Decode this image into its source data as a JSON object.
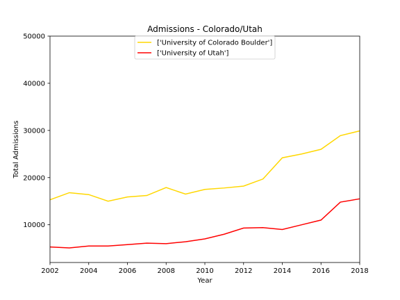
{
  "chart_data": {
    "type": "line",
    "title": "Admissions - Colorado/Utah",
    "xlabel": "Year",
    "ylabel": "Total Admissions",
    "xlim": [
      2002,
      2018
    ],
    "ylim": [
      2000,
      50000
    ],
    "x_ticks": [
      "2002",
      "2004",
      "2006",
      "2008",
      "2010",
      "2012",
      "2014",
      "2016",
      "2018"
    ],
    "y_ticks": [
      "10000",
      "20000",
      "30000",
      "40000",
      "50000"
    ],
    "grid": false,
    "legend_position": "top-center",
    "x": [
      2002,
      2003,
      2004,
      2005,
      2006,
      2007,
      2008,
      2009,
      2010,
      2011,
      2012,
      2013,
      2014,
      2015,
      2016,
      2017,
      2018
    ],
    "series": [
      {
        "name": "['University of Colorado Boulder']",
        "color": "#FFD700",
        "values": [
          15300,
          16800,
          16400,
          15000,
          15900,
          16200,
          17900,
          16500,
          17500,
          17800,
          18200,
          19700,
          24200,
          25000,
          26000,
          28900,
          29900
        ]
      },
      {
        "name": "['University of Utah']",
        "color": "#FF0000",
        "values": [
          5300,
          5100,
          5500,
          5500,
          5800,
          6100,
          6000,
          6400,
          7000,
          8000,
          9300,
          9400,
          9000,
          10000,
          11000,
          14800,
          15500
        ]
      }
    ]
  }
}
